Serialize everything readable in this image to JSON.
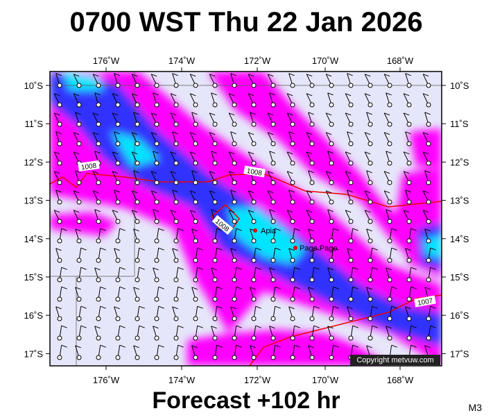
{
  "header": {
    "title": "0700 WST Thu 22 Jan 2026"
  },
  "map": {
    "longitude_labels": [
      "176˚W",
      "174˚W",
      "172˚W",
      "170˚W",
      "168˚W"
    ],
    "latitude_labels": [
      "10˚S",
      "11˚S",
      "12˚S",
      "13˚S",
      "14˚S",
      "15˚S",
      "16˚S",
      "17˚S"
    ],
    "isobar_labels": [
      "1008",
      "1008",
      "1008",
      "1007"
    ],
    "places": [
      "Apia",
      "Pago Pago"
    ],
    "copyright": "Copyright metvuw.com"
  },
  "footer": {
    "forecast": "Forecast +102 hr",
    "model": "M3"
  }
}
